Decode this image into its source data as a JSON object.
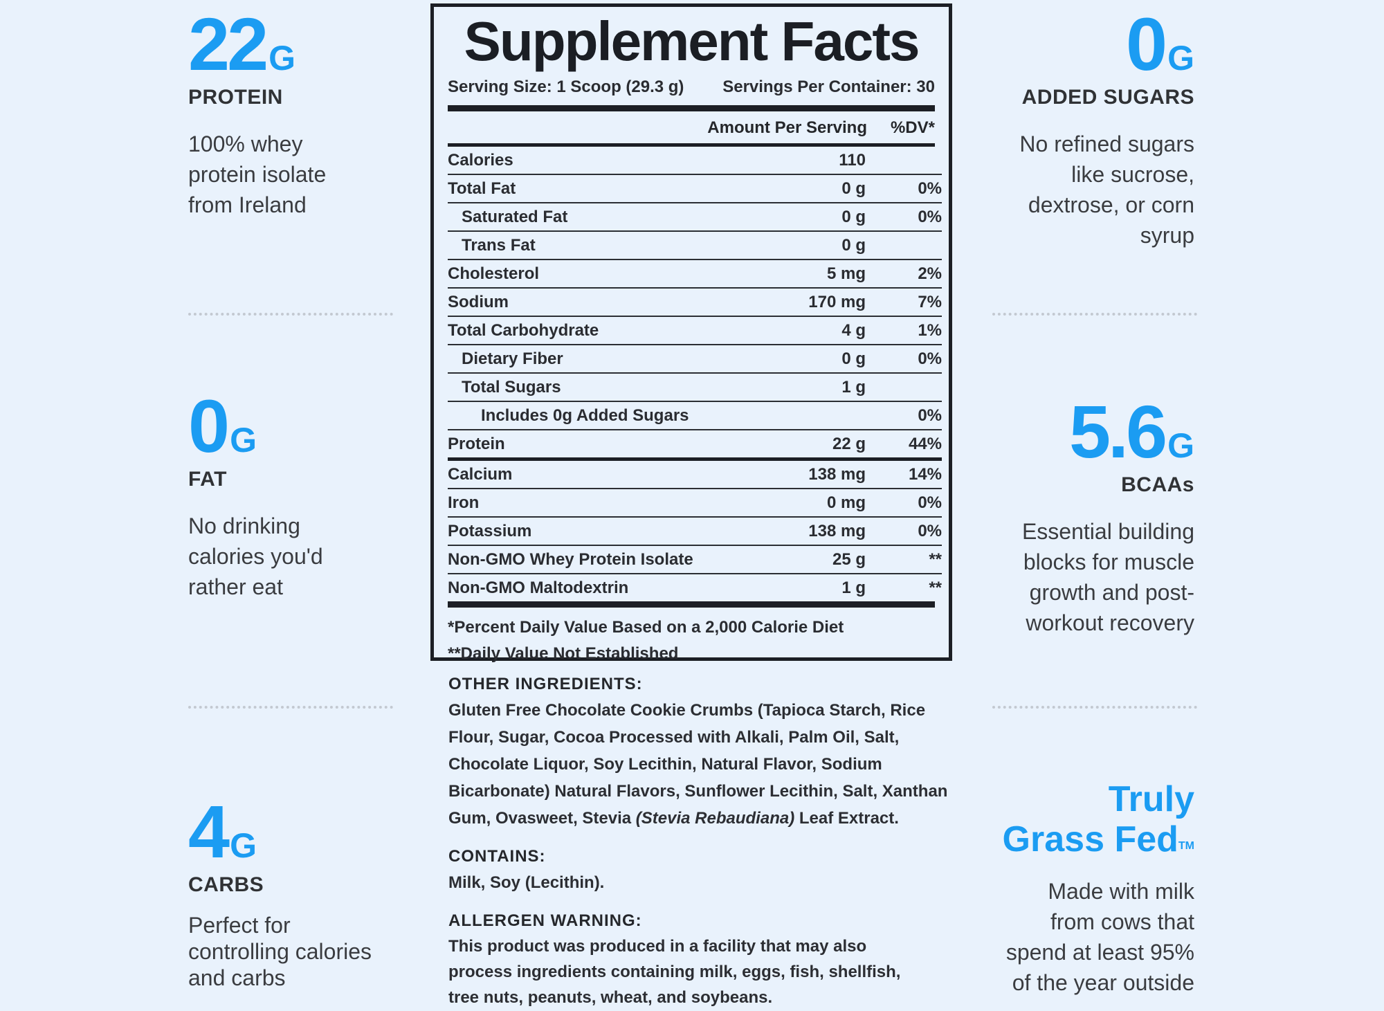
{
  "left": [
    {
      "value": "22",
      "unit": "G",
      "label": "PROTEIN",
      "desc": [
        "100% whey",
        "protein isolate",
        "from Ireland"
      ]
    },
    {
      "value": "0",
      "unit": "G",
      "label": "FAT",
      "desc": [
        "No drinking",
        "calories you'd",
        "rather eat"
      ]
    },
    {
      "value": "4",
      "unit": "G",
      "label": "CARBS",
      "desc": [
        "Perfect for",
        "controlling calories",
        "and carbs"
      ]
    }
  ],
  "right": [
    {
      "value": "0",
      "unit": "G",
      "label": "ADDED SUGARS",
      "desc": [
        "No refined sugars",
        "like sucrose,",
        "dextrose, or corn",
        "syrup"
      ]
    },
    {
      "value": "5.6",
      "unit": "G",
      "label": "BCAAs",
      "desc": [
        "Essential building",
        "blocks for muscle",
        "growth and post-",
        "workout recovery"
      ]
    },
    {
      "title1": "Truly",
      "title2": "Grass Fed",
      "tm": "TM",
      "desc": [
        "Made with milk",
        "from cows that",
        "spend at least 95%",
        "of the year outside"
      ]
    }
  ],
  "facts": {
    "title": "Supplement Facts",
    "serving_size": "Serving Size: 1 Scoop (29.3 g)",
    "servings_per": "Servings Per Container: 30",
    "col_amount": "Amount Per Serving",
    "col_dv": "%DV*",
    "rows": [
      {
        "name": "Calories",
        "amount": "110",
        "dv": ""
      },
      {
        "name": "Total Fat",
        "amount": "0 g",
        "dv": "0%"
      },
      {
        "name": "Saturated Fat",
        "amount": "0 g",
        "dv": "0%"
      },
      {
        "name": "Trans Fat",
        "amount": "0 g",
        "dv": ""
      },
      {
        "name": "Cholesterol",
        "amount": "5 mg",
        "dv": "2%"
      },
      {
        "name": "Sodium",
        "amount": "170 mg",
        "dv": "7%"
      },
      {
        "name": "Total Carbohydrate",
        "amount": "4 g",
        "dv": "1%"
      },
      {
        "name": "Dietary Fiber",
        "amount": "0 g",
        "dv": "0%"
      },
      {
        "name": "Total Sugars",
        "amount": "1 g",
        "dv": ""
      },
      {
        "name": "Includes 0g Added Sugars",
        "amount": "",
        "dv": "0%"
      },
      {
        "name": "Protein",
        "amount": "22 g",
        "dv": "44%"
      },
      {
        "name": "Calcium",
        "amount": "138 mg",
        "dv": "14%"
      },
      {
        "name": "Iron",
        "amount": "0 mg",
        "dv": "0%"
      },
      {
        "name": "Potassium",
        "amount": "138 mg",
        "dv": "0%"
      },
      {
        "name": "Non-GMO Whey Protein Isolate",
        "amount": "25 g",
        "dv": "**"
      },
      {
        "name": "Non-GMO Maltodextrin",
        "amount": "1 g",
        "dv": "**"
      }
    ],
    "foot1": "*Percent Daily Value Based on a 2,000 Calorie Diet",
    "foot2": "**Daily Value Not Established"
  },
  "ingredients": {
    "other_head": "OTHER INGREDIENTS:",
    "other_lines": [
      "Gluten Free Chocolate Cookie Crumbs (Tapioca Starch, Rice",
      "Flour, Sugar, Cocoa Processed with Alkali, Palm Oil, Salt,",
      "Chocolate Liquor, Soy Lecithin, Natural Flavor, Sodium",
      "Bicarbonate) Natural Flavors, Sunflower Lecithin, Salt, Xanthan"
    ],
    "other_last_pre": "Gum, Ovasweet, Stevia ",
    "other_last_italic": "(Stevia Rebaudiana)",
    "other_last_post": " Leaf Extract.",
    "contains_head": "CONTAINS:",
    "contains_text": "Milk, Soy (Lecithin).",
    "allergen_head": "ALLERGEN WARNING:",
    "allergen_lines": [
      "This product was produced in a facility that may also",
      "process ingredients containing milk, eggs, fish, shellfish,",
      "tree nuts, peanuts, wheat, and soybeans."
    ]
  },
  "colors": {
    "accent": "#1b9cf2",
    "ink": "#1c1f25",
    "background": "#e9f2fc"
  }
}
